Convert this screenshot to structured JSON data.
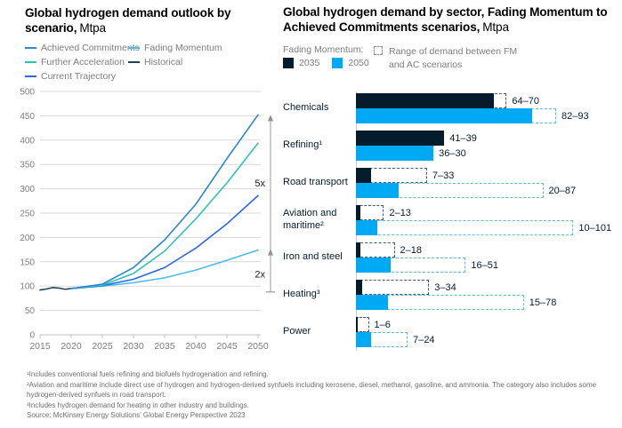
{
  "page": {
    "background": "#ffffff"
  },
  "chart_data": [
    {
      "type": "line",
      "title": "Global hydrogen demand outlook by scenario,",
      "unit": "Mtpa",
      "xlabel": "",
      "ylabel": "",
      "xlim": [
        2015,
        2050
      ],
      "ylim": [
        0,
        500
      ],
      "x_ticks": [
        2015,
        2020,
        2025,
        2030,
        2035,
        2040,
        2045,
        2050
      ],
      "y_ticks": [
        0,
        50,
        100,
        150,
        200,
        250,
        300,
        350,
        400,
        450,
        500
      ],
      "grid": "horizontal",
      "legend_position": "top",
      "legend_columns": [
        [
          {
            "name": "Achieved Commitments",
            "color": "#2E86D0"
          },
          {
            "name": "Further Acceleration",
            "color": "#2EC5B4"
          },
          {
            "name": "Current Trajectory",
            "color": "#2B66E3"
          }
        ],
        [
          {
            "name": "Fading Momentum",
            "color": "#4ABCEE"
          },
          {
            "name": "Historical",
            "color": "#26404F"
          }
        ]
      ],
      "series": [
        {
          "name": "Historical",
          "color": "#26404F",
          "x": [
            2015,
            2016,
            2017,
            2018,
            2019,
            2020
          ],
          "values": [
            92,
            94,
            97,
            96,
            93.5,
            95
          ]
        },
        {
          "name": "Fading Momentum",
          "color": "#4ABCEE",
          "x": [
            2020,
            2025,
            2030,
            2035,
            2040,
            2045,
            2050
          ],
          "values": [
            95,
            100,
            107,
            117,
            133,
            153,
            174
          ]
        },
        {
          "name": "Current Trajectory",
          "color": "#2B66E3",
          "x": [
            2020,
            2025,
            2030,
            2035,
            2040,
            2045,
            2050
          ],
          "values": [
            95,
            101,
            114,
            138,
            178,
            228,
            286
          ]
        },
        {
          "name": "Further Acceleration",
          "color": "#2EC5B4",
          "x": [
            2020,
            2025,
            2030,
            2035,
            2040,
            2045,
            2050
          ],
          "values": [
            95,
            102,
            126,
            172,
            238,
            312,
            394
          ]
        },
        {
          "name": "Achieved Commitments",
          "color": "#2E86D0",
          "x": [
            2020,
            2025,
            2030,
            2035,
            2040,
            2045,
            2050
          ],
          "values": [
            95,
            104,
            138,
            195,
            268,
            362,
            452
          ]
        }
      ],
      "annotations": [
        {
          "label": "5x",
          "from": 88,
          "to": 450,
          "label_v": 305
        },
        {
          "label": "2x",
          "from": 88,
          "to": 174,
          "label_v": 118
        }
      ]
    },
    {
      "type": "bar",
      "title": "Global hydrogen demand by sector, Fading Momentum to Achieved Commitments scenarios,",
      "unit": "Mtpa",
      "orientation": "horizontal",
      "xlim": [
        0,
        110
      ],
      "legend": {
        "group_label": "Fading Momentum:",
        "items": [
          {
            "label": "2035",
            "color": "#051C2C"
          },
          {
            "label": "2050",
            "color": "#00A9F4"
          }
        ],
        "range_label": "Range of demand between FM and AC scenarios"
      },
      "colors": {
        "bar_2035": "#051C2C",
        "bar_2050": "#00A9F4",
        "range_2035": "#42596B",
        "range_2050": "#55BFF2"
      },
      "sectors": [
        {
          "name": "Chemicals",
          "fm_2035": 64,
          "ac_2035": 70,
          "range_2035": "64–70",
          "fm_2050": 82,
          "ac_2050": 93,
          "range_2050": "82–93"
        },
        {
          "name": "Refining¹",
          "fm_2035": 41,
          "ac_2035": 39,
          "range_2035": "41–39",
          "fm_2050": 36,
          "ac_2050": 30,
          "range_2050": "36–30"
        },
        {
          "name": "Road transport",
          "fm_2035": 7,
          "ac_2035": 33,
          "range_2035": "7–33",
          "fm_2050": 20,
          "ac_2050": 87,
          "range_2050": "20–87"
        },
        {
          "name": "Aviation and maritime²",
          "fm_2035": 2,
          "ac_2035": 13,
          "range_2035": "2–13",
          "fm_2050": 10,
          "ac_2050": 101,
          "range_2050": "10–101"
        },
        {
          "name": "Iron and steel",
          "fm_2035": 2,
          "ac_2035": 18,
          "range_2035": "2–18",
          "fm_2050": 16,
          "ac_2050": 51,
          "range_2050": "16–51"
        },
        {
          "name": "Heating³",
          "fm_2035": 3,
          "ac_2035": 34,
          "range_2035": "3–34",
          "fm_2050": 15,
          "ac_2050": 78,
          "range_2050": "15–78"
        },
        {
          "name": "Power",
          "fm_2035": 1,
          "ac_2035": 6,
          "range_2035": "1–6",
          "fm_2050": 7,
          "ac_2050": 24,
          "range_2050": "7–24"
        }
      ]
    }
  ],
  "footnotes": [
    "¹Includes conventional fuels refining and biofuels hydrogenation and refining.",
    "²Aviation and maritime include direct use of hydrogen and hydrogen-derived synfuels including kerosene, diesel, methanol, gasoline, and ammonia. The category also includes some hydrogen-derived synfuels in road transport.",
    "³Includes hydrogen demand for heating in other industry and buildings.",
    "Source: McKinsey Energy Solutions’ Global Energy Perspective 2023"
  ]
}
